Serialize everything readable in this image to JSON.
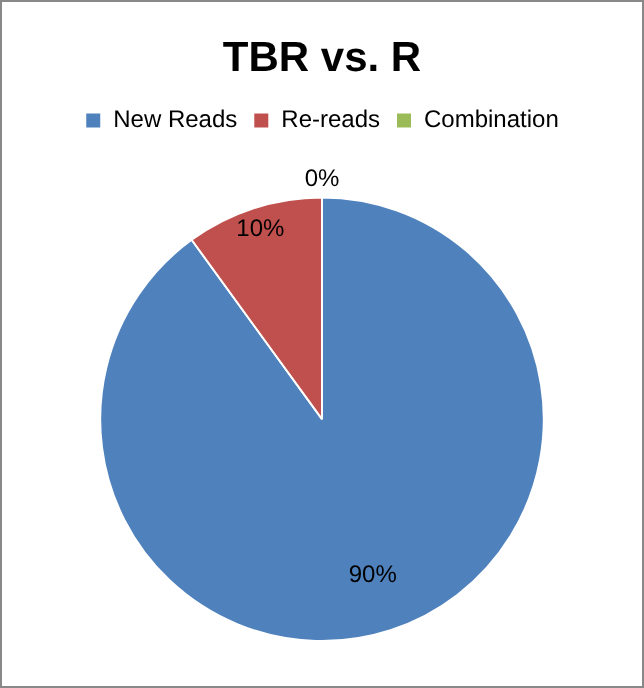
{
  "chart_data": {
    "type": "pie",
    "title": "TBR vs. R",
    "categories": [
      "New Reads",
      "Re-reads",
      "Combination"
    ],
    "values": [
      90,
      10,
      0
    ],
    "colors": [
      "#4f81bd",
      "#c0504d",
      "#9bbb59"
    ],
    "value_labels": [
      "90%",
      "10%",
      "0%"
    ],
    "legend": "top"
  }
}
